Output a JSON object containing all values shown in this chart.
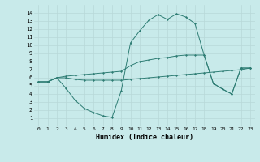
{
  "xlabel": "Humidex (Indice chaleur)",
  "x": [
    0,
    1,
    2,
    3,
    4,
    5,
    6,
    7,
    8,
    9,
    10,
    11,
    12,
    13,
    14,
    15,
    16,
    17,
    18,
    19,
    20,
    21,
    22,
    23
  ],
  "line1": [
    5.5,
    5.5,
    6.0,
    6.2,
    6.3,
    6.4,
    6.5,
    6.6,
    6.7,
    6.8,
    7.5,
    8.0,
    8.2,
    8.4,
    8.5,
    8.7,
    8.8,
    8.8,
    8.8,
    5.3,
    4.6,
    4.0,
    7.2,
    7.2
  ],
  "line2": [
    5.5,
    5.5,
    6.0,
    4.7,
    3.2,
    2.2,
    1.7,
    1.3,
    1.1,
    4.4,
    10.3,
    11.8,
    13.1,
    13.8,
    13.2,
    13.9,
    13.5,
    12.7,
    8.8,
    5.3,
    4.6,
    4.0,
    7.2,
    7.2
  ],
  "line3": [
    5.5,
    5.5,
    6.0,
    6.0,
    5.8,
    5.7,
    5.7,
    5.7,
    5.7,
    5.7,
    5.8,
    5.9,
    6.0,
    6.1,
    6.2,
    6.3,
    6.4,
    6.5,
    6.6,
    6.7,
    6.8,
    6.9,
    7.0,
    7.2
  ],
  "line_color": "#2e7d74",
  "bg_color": "#c8eaea",
  "grid_color": "#b8d8d8",
  "ylim": [
    0,
    15
  ],
  "yticks": [
    1,
    2,
    3,
    4,
    5,
    6,
    7,
    8,
    9,
    10,
    11,
    12,
    13,
    14
  ],
  "xticks": [
    0,
    1,
    2,
    3,
    4,
    5,
    6,
    7,
    8,
    9,
    10,
    11,
    12,
    13,
    14,
    15,
    16,
    17,
    18,
    19,
    20,
    21,
    22,
    23
  ]
}
